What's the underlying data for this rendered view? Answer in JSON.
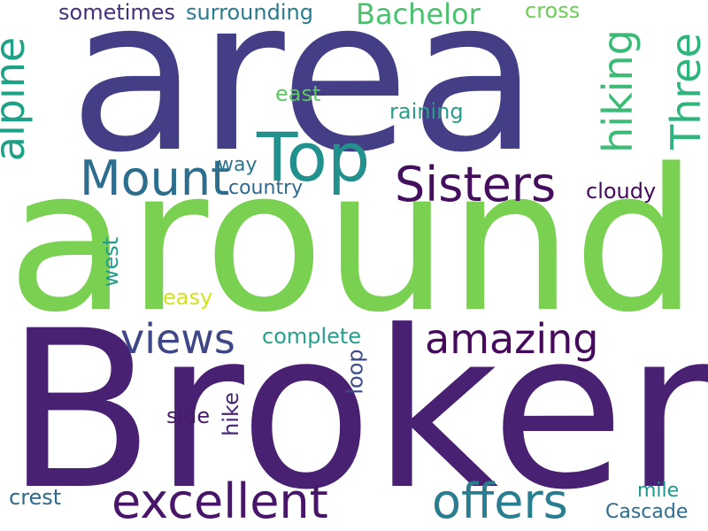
{
  "words": [
    {
      "key": "area",
      "text": "area",
      "color": "#433e85"
    },
    {
      "key": "around",
      "text": "around",
      "color": "#7ad151"
    },
    {
      "key": "broken",
      "text": "Broken",
      "color": "#482173"
    },
    {
      "key": "top",
      "text": "Top",
      "color": "#22908c"
    },
    {
      "key": "mount",
      "text": "Mount",
      "color": "#2d6e8e"
    },
    {
      "key": "sisters",
      "text": "Sisters",
      "color": "#440f5c"
    },
    {
      "key": "alpine",
      "text": "alpine",
      "color": "#1fa187"
    },
    {
      "key": "hiking",
      "text": "hiking",
      "color": "#3bbb75"
    },
    {
      "key": "three",
      "text": "Three",
      "color": "#2fb47c"
    },
    {
      "key": "bachelor",
      "text": "Bachelor",
      "color": "#4ac16d"
    },
    {
      "key": "sometimes",
      "text": "sometimes",
      "color": "#46307e"
    },
    {
      "key": "surrounding",
      "text": "surrounding",
      "color": "#287c8e"
    },
    {
      "key": "cross",
      "text": "cross",
      "color": "#6ece58"
    },
    {
      "key": "east",
      "text": "east",
      "color": "#5cc863"
    },
    {
      "key": "raining",
      "text": "raining",
      "color": "#2a9d8a"
    },
    {
      "key": "way",
      "text": "way",
      "color": "#2b758e"
    },
    {
      "key": "country",
      "text": "country",
      "color": "#30698e"
    },
    {
      "key": "cloudy",
      "text": "cloudy",
      "color": "#46085c"
    },
    {
      "key": "west",
      "text": "west",
      "color": "#1f9f88"
    },
    {
      "key": "easy",
      "text": "easy",
      "color": "#d2e21b"
    },
    {
      "key": "views",
      "text": "views",
      "color": "#3f4788"
    },
    {
      "key": "amazing",
      "text": "amazing",
      "color": "#460a5d"
    },
    {
      "key": "complete",
      "text": "complete",
      "color": "#25a18e"
    },
    {
      "key": "loop",
      "text": "loop",
      "color": "#3e4c8a"
    },
    {
      "key": "hike",
      "text": "hike",
      "color": "#482576"
    },
    {
      "key": "side",
      "text": "side",
      "color": "#481a6c"
    },
    {
      "key": "excellent",
      "text": "excellent",
      "color": "#481668"
    },
    {
      "key": "offers",
      "text": "offers",
      "color": "#287d8e"
    },
    {
      "key": "crest",
      "text": "crest",
      "color": "#31688e"
    },
    {
      "key": "mile",
      "text": "mile",
      "color": "#1f988b"
    },
    {
      "key": "cascade",
      "text": "Cascade",
      "color": "#2e6d8e"
    }
  ]
}
